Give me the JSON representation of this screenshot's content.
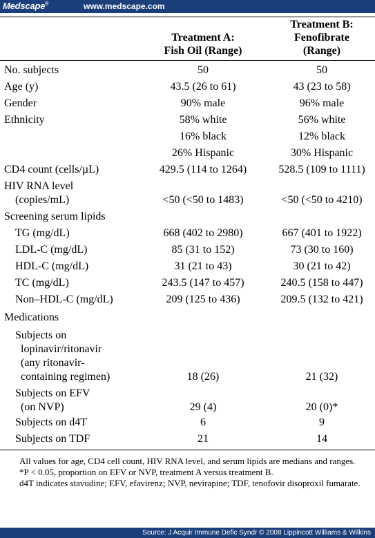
{
  "header": {
    "brand": "Medscape",
    "brand_mark": "®",
    "url": "www.medscape.com"
  },
  "columns": {
    "a_line1": "Treatment A:",
    "a_line2": "Fish Oil (Range)",
    "b_line1": "Treatment B:",
    "b_line2": "Fenofibrate",
    "b_line3": "(Range)"
  },
  "rows": [
    {
      "label": "No. subjects",
      "a": "50",
      "b": "50"
    },
    {
      "label": "Age (y)",
      "a": "43.5 (26 to 61)",
      "b": "43 (23 to 58)"
    },
    {
      "label": "Gender",
      "a": "90% male",
      "b": "96% male"
    },
    {
      "label": "Ethnicity",
      "a": "58% white",
      "b": "56% white"
    },
    {
      "label": "",
      "a": "16% black",
      "b": "12% black"
    },
    {
      "label": "",
      "a": "26% Hispanic",
      "b": "30% Hispanic"
    },
    {
      "label": "CD4 count (cells/µL)",
      "a": "429.5 (114 to 1264)",
      "b": "528.5 (109 to 1111)"
    },
    {
      "label": "HIV RNA level",
      "a": "",
      "b": ""
    },
    {
      "label": "(copies/mL)",
      "a": "<50 (<50 to 1483)",
      "b": "<50 (<50 to 4210)"
    },
    {
      "label": "Screening serum lipids",
      "a": "",
      "b": ""
    },
    {
      "label": "TG (mg/dL)",
      "a": "668 (402 to 2980)",
      "b": "667 (401 to 1922)"
    },
    {
      "label": "LDL-C (mg/dL)",
      "a": "85 (31 to 152)",
      "b": "73 (30 to 160)"
    },
    {
      "label": "HDL-C (mg/dL)",
      "a": "31 (21 to 43)",
      "b": "30 (21 to 42)"
    },
    {
      "label": "TC (mg/dL)",
      "a": "243.5 (147 to 457)",
      "b": "240.5 (158 to 447)"
    },
    {
      "label": "Non–HDL-C (mg/dL)",
      "a": "209 (125 to 436)",
      "b": "209.5 (132 to 421)"
    },
    {
      "label": "Medications",
      "a": "",
      "b": ""
    }
  ],
  "meds": {
    "lpv_l1": "Subjects on",
    "lpv_l2": "lopinavir/ritonavir",
    "lpv_l3": "(any ritonavir-",
    "lpv_l4": "containing regimen)",
    "lpv_a": "18 (26)",
    "lpv_b": "21 (32)",
    "efv_l1": "Subjects on EFV",
    "efv_l2": "(on NVP)",
    "efv_a": "29 (4)",
    "efv_b": "20 (0)*",
    "d4t_label": "Subjects on d4T",
    "d4t_a": "6",
    "d4t_b": "9",
    "tdf_label": "Subjects on TDF",
    "tdf_a": "21",
    "tdf_b": "14"
  },
  "notes": {
    "n1": "All values for age, CD4 cell count, HIV RNA level, and serum lipids are medians and ranges.",
    "n2": "*P < 0.05, proportion on EFV or NVP, treatment A versus treatment B.",
    "n3": "d4T indicates stavudine; EFV, efavirenz; NVP, nevirapine; TDF, tenofovir disoproxil fumarate."
  },
  "footer": {
    "source": "Source: J Acquir Immune Defic Syndr © 2008 Lippincott Williams & Wilkins"
  }
}
